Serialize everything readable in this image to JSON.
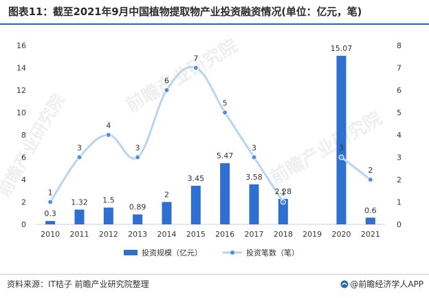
{
  "title": "图表11：截至2021年9月中国植物提取物产业投资融资情况(单位：亿元，笔)",
  "source": "资料来源：IT桔子 前瞻产业研究院整理",
  "brand": "@前瞻经济学人APP",
  "watermark": "前瞻产业研究院",
  "colors": {
    "bar": "#2e6fd0",
    "line": "#b8d4f2",
    "marker": "#4f8fe0",
    "axis_text": "#333333",
    "rule": "#2b66b3"
  },
  "chart_data": {
    "type": "bar",
    "categories": [
      "2010",
      "2011",
      "2012",
      "2013",
      "2014",
      "2015",
      "2016",
      "2017",
      "2018",
      "2019",
      "2020",
      "2021"
    ],
    "series": [
      {
        "name": "投资规模（亿元）",
        "type": "bar",
        "axis": "left",
        "values": [
          0.3,
          1.32,
          1.5,
          0.89,
          2,
          3.45,
          5.47,
          3.58,
          2.28,
          null,
          15.07,
          0.6
        ],
        "labels": [
          "0.3",
          "1.32",
          "1.5",
          "0.89",
          "2",
          "3.45",
          "5.47",
          "3.58",
          "2.28",
          "",
          "15.07",
          "0.6"
        ]
      },
      {
        "name": "投资笔数（笔）",
        "type": "line",
        "smooth": true,
        "axis": "right",
        "values": [
          1,
          3,
          4,
          3,
          6,
          7,
          5,
          3,
          1,
          null,
          3,
          2
        ],
        "labels": [
          "1",
          "3",
          "4",
          "3",
          "6",
          "7",
          "5",
          "3",
          "1",
          "",
          "3",
          "2"
        ]
      }
    ],
    "y_left": {
      "min": 0,
      "max": 16,
      "ticks": [
        "0",
        "2",
        "4",
        "6",
        "8",
        "10",
        "12",
        "14",
        "16"
      ]
    },
    "y_right": {
      "min": 0,
      "max": 8,
      "ticks": [
        "0",
        "1",
        "2",
        "3",
        "4",
        "5",
        "6",
        "7",
        "8"
      ]
    },
    "grid": false,
    "legend_position": "bottom"
  }
}
